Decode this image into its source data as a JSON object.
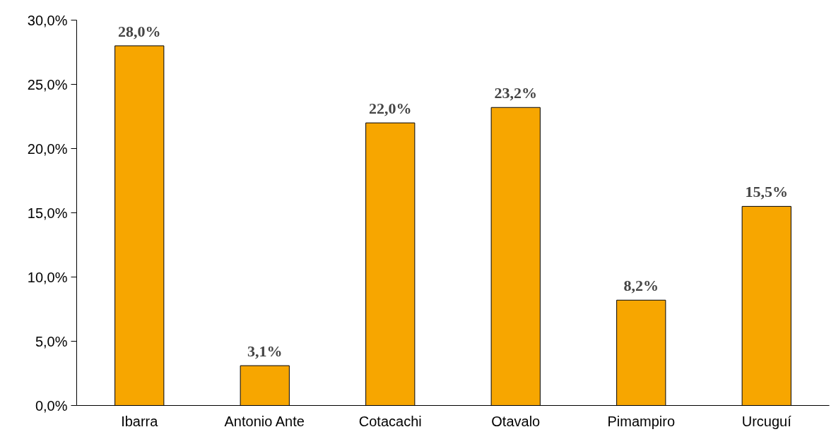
{
  "chart_data": {
    "type": "bar",
    "categories": [
      "Ibarra",
      "Antonio Ante",
      "Cotacachi",
      "Otavalo",
      "Pimampiro",
      "Urcuguí"
    ],
    "values": [
      28.0,
      3.1,
      22.0,
      23.2,
      8.2,
      15.5
    ],
    "value_labels": [
      "28,0%",
      "3,1%",
      "22,0%",
      "23,2%",
      "8,2%",
      "15,5%"
    ],
    "color": "#f7a600",
    "ylim": [
      0,
      30
    ],
    "yticks": [
      {
        "value": 0,
        "label": "0,0%"
      },
      {
        "value": 5,
        "label": "5,0%"
      },
      {
        "value": 10,
        "label": "10,0%"
      },
      {
        "value": 15,
        "label": "15,0%"
      },
      {
        "value": 20,
        "label": "20,0%"
      },
      {
        "value": 25,
        "label": "25,0%"
      },
      {
        "value": 30,
        "label": "30,0%"
      }
    ],
    "grid": false
  }
}
